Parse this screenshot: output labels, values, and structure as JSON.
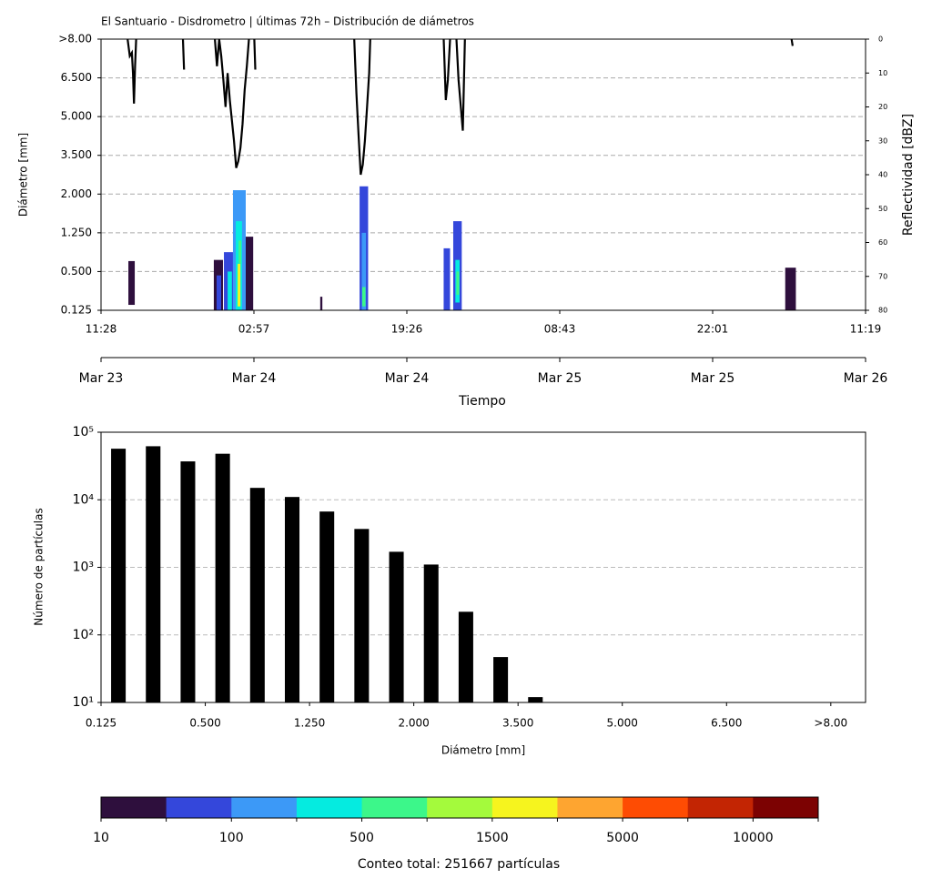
{
  "chart_data": [
    {
      "type": "heatmap",
      "title": "El Santuario - Disdrometro | últimas 72h – Distribución de diámetros",
      "ylabel": "Diámetro [mm]",
      "xlabel": "Tiempo",
      "y2label": "Reflectividad [dBZ]",
      "xlim": [
        0,
        71.85
      ],
      "xticks": [
        {
          "value": 0,
          "label": "11:28"
        },
        {
          "value": 14.37,
          "label": "02:57"
        },
        {
          "value": 28.74,
          "label": "19:26"
        },
        {
          "value": 43.11,
          "label": "08:43"
        },
        {
          "value": 57.48,
          "label": "22:01"
        },
        {
          "value": 71.85,
          "label": "11:19"
        }
      ],
      "xticks2": [
        {
          "value": 0,
          "label": "Mar 23"
        },
        {
          "value": 14.37,
          "label": "Mar 24"
        },
        {
          "value": 28.74,
          "label": "Mar 24"
        },
        {
          "value": 43.11,
          "label": "Mar 25"
        },
        {
          "value": 57.48,
          "label": "Mar 25"
        },
        {
          "value": 71.85,
          "label": "Mar 26"
        }
      ],
      "ycategories": [
        "0.125",
        "0.500",
        "1.250",
        "2.000",
        "3.500",
        "5.000",
        "6.500",
        ">8.00"
      ],
      "y2lim": [
        80,
        0
      ],
      "y2ticks": [
        0,
        10,
        20,
        30,
        40,
        50,
        60,
        70,
        80
      ],
      "grid": true,
      "cells": [
        {
          "x": [
            2.57,
            3.17
          ],
          "y": [
            0.14,
            1.27
          ],
          "count": 20
        },
        {
          "x": [
            10.6,
            11.46
          ],
          "y": [
            0,
            1.3
          ],
          "count": 30
        },
        {
          "x": [
            10.86,
            11.29
          ],
          "y": [
            0,
            0.9
          ],
          "count": 80
        },
        {
          "x": [
            11.55,
            12.4
          ],
          "y": [
            0,
            1.5
          ],
          "count": 60
        },
        {
          "x": [
            11.9,
            12.3
          ],
          "y": [
            0,
            1.0
          ],
          "count": 300
        },
        {
          "x": [
            12.4,
            13.6
          ],
          "y": [
            0,
            3.1
          ],
          "count": 120
        },
        {
          "x": [
            12.66,
            13.25
          ],
          "y": [
            0,
            2.3
          ],
          "count": 400
        },
        {
          "x": [
            12.84,
            13.1
          ],
          "y": [
            0.1,
            1.2
          ],
          "count": 1700
        },
        {
          "x": [
            12.92,
            13.18
          ],
          "y": [
            1.2,
            1.8
          ],
          "count": 800
        },
        {
          "x": [
            13.6,
            14.3
          ],
          "y": [
            0,
            1.9
          ],
          "count": 40
        },
        {
          "x": [
            20.6,
            20.8
          ],
          "y": [
            0,
            0.35
          ],
          "count": 15
        },
        {
          "x": [
            24.3,
            25.1
          ],
          "y": [
            0,
            3.2
          ],
          "count": 70
        },
        {
          "x": [
            24.5,
            24.9
          ],
          "y": [
            0,
            2.0
          ],
          "count": 200
        },
        {
          "x": [
            24.55,
            24.85
          ],
          "y": [
            0.1,
            0.6
          ],
          "count": 600
        },
        {
          "x": [
            32.2,
            32.8
          ],
          "y": [
            0,
            1.6
          ],
          "count": 80
        },
        {
          "x": [
            33.1,
            33.9
          ],
          "y": [
            0,
            2.3
          ],
          "count": 90
        },
        {
          "x": [
            33.3,
            33.7
          ],
          "y": [
            0.2,
            1.3
          ],
          "count": 300
        },
        {
          "x": [
            33.4,
            33.65
          ],
          "y": [
            0.4,
            1.0
          ],
          "count": 700
        },
        {
          "x": [
            64.3,
            65.3
          ],
          "y": [
            0,
            1.1
          ],
          "count": 25
        }
      ],
      "series": [
        {
          "axis": "y2",
          "color": "#000000",
          "x": [
            2.5,
            2.7,
            2.9,
            3.0,
            3.1,
            3.2,
            3.3,
            null,
            7.7,
            7.8,
            null,
            10.7,
            10.9,
            11.1,
            11.3,
            11.5,
            11.7,
            11.9,
            12.1,
            12.3,
            12.5,
            12.7,
            12.9,
            13.1,
            13.3,
            13.5,
            13.7,
            13.9,
            null,
            14.4,
            14.5,
            null,
            23.8,
            24.0,
            24.2,
            24.4,
            24.6,
            24.8,
            25.0,
            25.2,
            25.3,
            null,
            32.2,
            32.4,
            32.6,
            32.8,
            null,
            33.4,
            33.6,
            34.0,
            34.2,
            null,
            64.9,
            65.0
          ],
          "values": [
            0,
            5,
            4,
            10,
            19,
            8,
            0,
            null,
            0,
            9,
            null,
            0,
            8,
            0,
            5,
            12,
            20,
            10,
            18,
            24,
            30,
            38,
            36,
            32,
            25,
            15,
            8,
            0,
            null,
            0,
            9,
            null,
            0,
            16,
            28,
            40,
            37,
            30,
            20,
            10,
            0,
            null,
            0,
            18,
            12,
            0,
            null,
            0,
            12,
            27,
            0,
            null,
            0,
            2
          ]
        }
      ],
      "colorbar": {
        "bounds": [
          10,
          50,
          100,
          250,
          500,
          1000,
          1500,
          3000,
          5000,
          7500,
          10000,
          15000
        ],
        "colors": [
          "#2e0f3d",
          "#3447db",
          "#3c99f7",
          "#05ebe0",
          "#3cf78a",
          "#a4fa3c",
          "#f6f41e",
          "#fea530",
          "#fe4c03",
          "#c32503",
          "#7c0202"
        ],
        "ticks": [
          10,
          100,
          500,
          1500,
          5000,
          10000
        ],
        "label": "Conteo total: 251667 partículas"
      }
    },
    {
      "type": "bar",
      "ylabel": "Número de partículas",
      "xlabel": "Diámetro [mm]",
      "x": [
        0.5,
        1.5,
        2.5,
        3.5,
        4.5,
        5.5,
        6.5,
        7.5,
        8.5,
        9.5,
        10.5,
        11.5,
        12.5
      ],
      "values": [
        57000,
        62000,
        37000,
        48000,
        15000,
        11000,
        6700,
        3700,
        1700,
        1100,
        220,
        47,
        12
      ],
      "color": "#000000",
      "xlim": [
        0,
        22
      ],
      "xticks": [
        {
          "value": 0,
          "label": "0.125"
        },
        {
          "value": 3,
          "label": "0.500"
        },
        {
          "value": 6,
          "label": "1.250"
        },
        {
          "value": 9,
          "label": "2.000"
        },
        {
          "value": 12,
          "label": "3.500"
        },
        {
          "value": 15,
          "label": "5.000"
        },
        {
          "value": 18,
          "label": "6.500"
        },
        {
          "value": 21,
          "label": ">8.00"
        }
      ],
      "ylim": [
        10,
        100000
      ],
      "yticks": [
        {
          "value": 10,
          "label": "10¹"
        },
        {
          "value": 100,
          "label": "10²"
        },
        {
          "value": 1000,
          "label": "10³"
        },
        {
          "value": 10000,
          "label": "10⁴"
        },
        {
          "value": 100000,
          "label": "10⁵"
        }
      ],
      "log_y": true,
      "grid": true
    }
  ]
}
